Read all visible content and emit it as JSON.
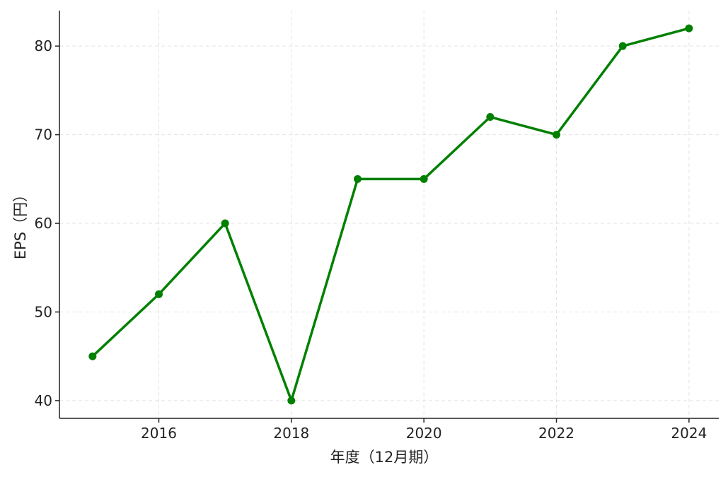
{
  "chart_data": {
    "type": "line",
    "x": [
      2015,
      2016,
      2017,
      2018,
      2019,
      2020,
      2021,
      2022,
      2023,
      2024
    ],
    "series": [
      {
        "values": [
          45,
          52,
          60,
          40,
          65,
          65,
          72,
          70,
          80,
          82
        ]
      }
    ],
    "xlabel": "年度（12月期）",
    "ylabel": "EPS（円）",
    "x_ticks": [
      "2016",
      "2018",
      "2020",
      "2022",
      "2024"
    ],
    "y_ticks": [
      "40",
      "50",
      "60",
      "70",
      "80"
    ],
    "xlim": [
      2014.5,
      2024.45
    ],
    "ylim": [
      38,
      84
    ],
    "grid": true,
    "legend": "none",
    "line_color": "#008000"
  }
}
